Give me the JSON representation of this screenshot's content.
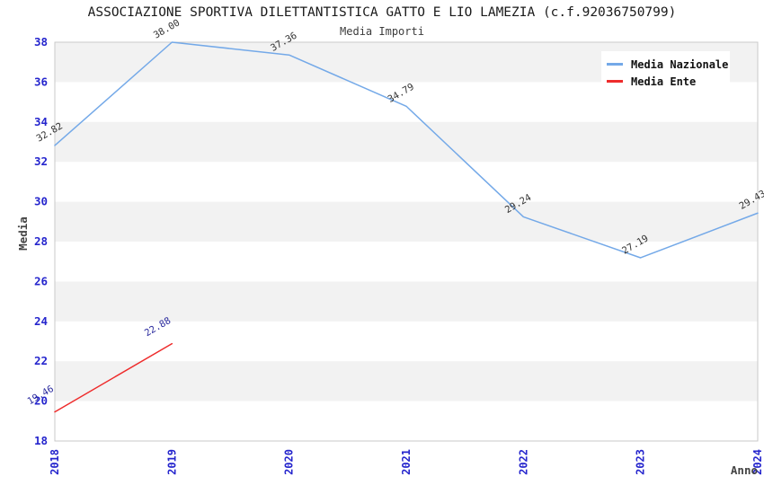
{
  "header": {
    "title": "ASSOCIAZIONE SPORTIVA DILETTANTISTICA GATTO E LIO LAMEZIA (c.f.92036750799)",
    "subtitle": "Media Importi"
  },
  "legend": {
    "position": "top-right",
    "items": [
      "Media Nazionale",
      "Media Ente"
    ]
  },
  "chart_data": {
    "type": "line",
    "x": [
      2018,
      2019,
      2020,
      2021,
      2022,
      2023,
      2024
    ],
    "series": [
      {
        "name": "Media Nazionale",
        "color": "#74a9e8",
        "label_color": "#333333",
        "values": [
          32.82,
          38.0,
          37.36,
          34.79,
          29.24,
          27.19,
          29.43
        ]
      },
      {
        "name": "Media Ente",
        "color": "#ee2c2c",
        "label_color": "#2b2b9e",
        "values": [
          19.46,
          22.88,
          null,
          null,
          null,
          null,
          null
        ]
      }
    ],
    "xlabel": "Anno",
    "ylabel": "Media",
    "ylim": [
      18,
      38
    ],
    "ytick_step": 2,
    "yticks": [
      18,
      20,
      22,
      24,
      26,
      28,
      30,
      32,
      34,
      36,
      38
    ],
    "grid": "alternating-horizontal-bands",
    "band_color": "#f2f2f2",
    "plot_border_color": "#c9c9c9",
    "tick_label_color": "#2525cd",
    "axis_title_color": "#444444",
    "data_labels_shown": true,
    "label_decimals": 2
  }
}
